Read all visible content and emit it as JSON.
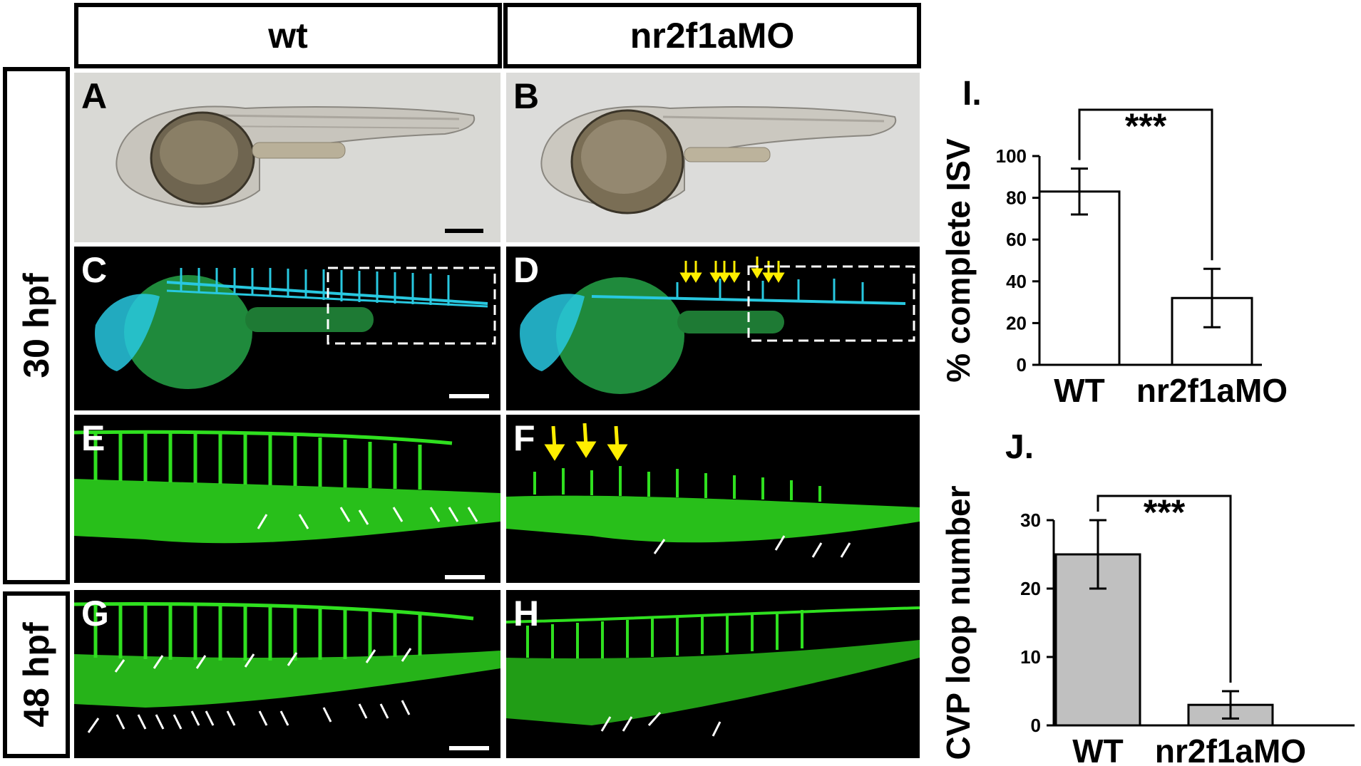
{
  "headers": {
    "wt": "wt",
    "mo": "nr2f1aMO"
  },
  "stage_labels": {
    "hpf30": "30 hpf",
    "hpf48": "48 hpf"
  },
  "panel_labels": [
    "A",
    "B",
    "C",
    "D",
    "E",
    "F",
    "G",
    "H"
  ],
  "colors": {
    "vessel_green": "#2fe01f",
    "vessel_cyan": "#28c8e0",
    "yolk_green": "#1f8a3c",
    "arrow_white": "#ffffff",
    "arrow_yellow": "#ffee00",
    "bar_gray": "#c0c0c0",
    "bar_white": "#ffffff"
  },
  "chart_data": [
    {
      "type": "bar",
      "panel_label": "I.",
      "categories": [
        "WT",
        "nr2f1aMO"
      ],
      "values": [
        83,
        32
      ],
      "errors": [
        11,
        14
      ],
      "ylabel": "% complete ISV",
      "ylim": [
        0,
        100
      ],
      "yticks": [
        0,
        20,
        40,
        60,
        80,
        100
      ],
      "significance": "***",
      "bar_color": "#ffffff"
    },
    {
      "type": "bar",
      "panel_label": "J.",
      "categories": [
        "WT",
        "nr2f1aMO"
      ],
      "values": [
        25,
        3
      ],
      "errors": [
        5,
        2
      ],
      "ylabel": "CVP loop number",
      "ylim": [
        0,
        30
      ],
      "yticks": [
        0,
        10,
        20,
        30
      ],
      "significance": "***",
      "bar_color": "#c0c0c0"
    }
  ]
}
